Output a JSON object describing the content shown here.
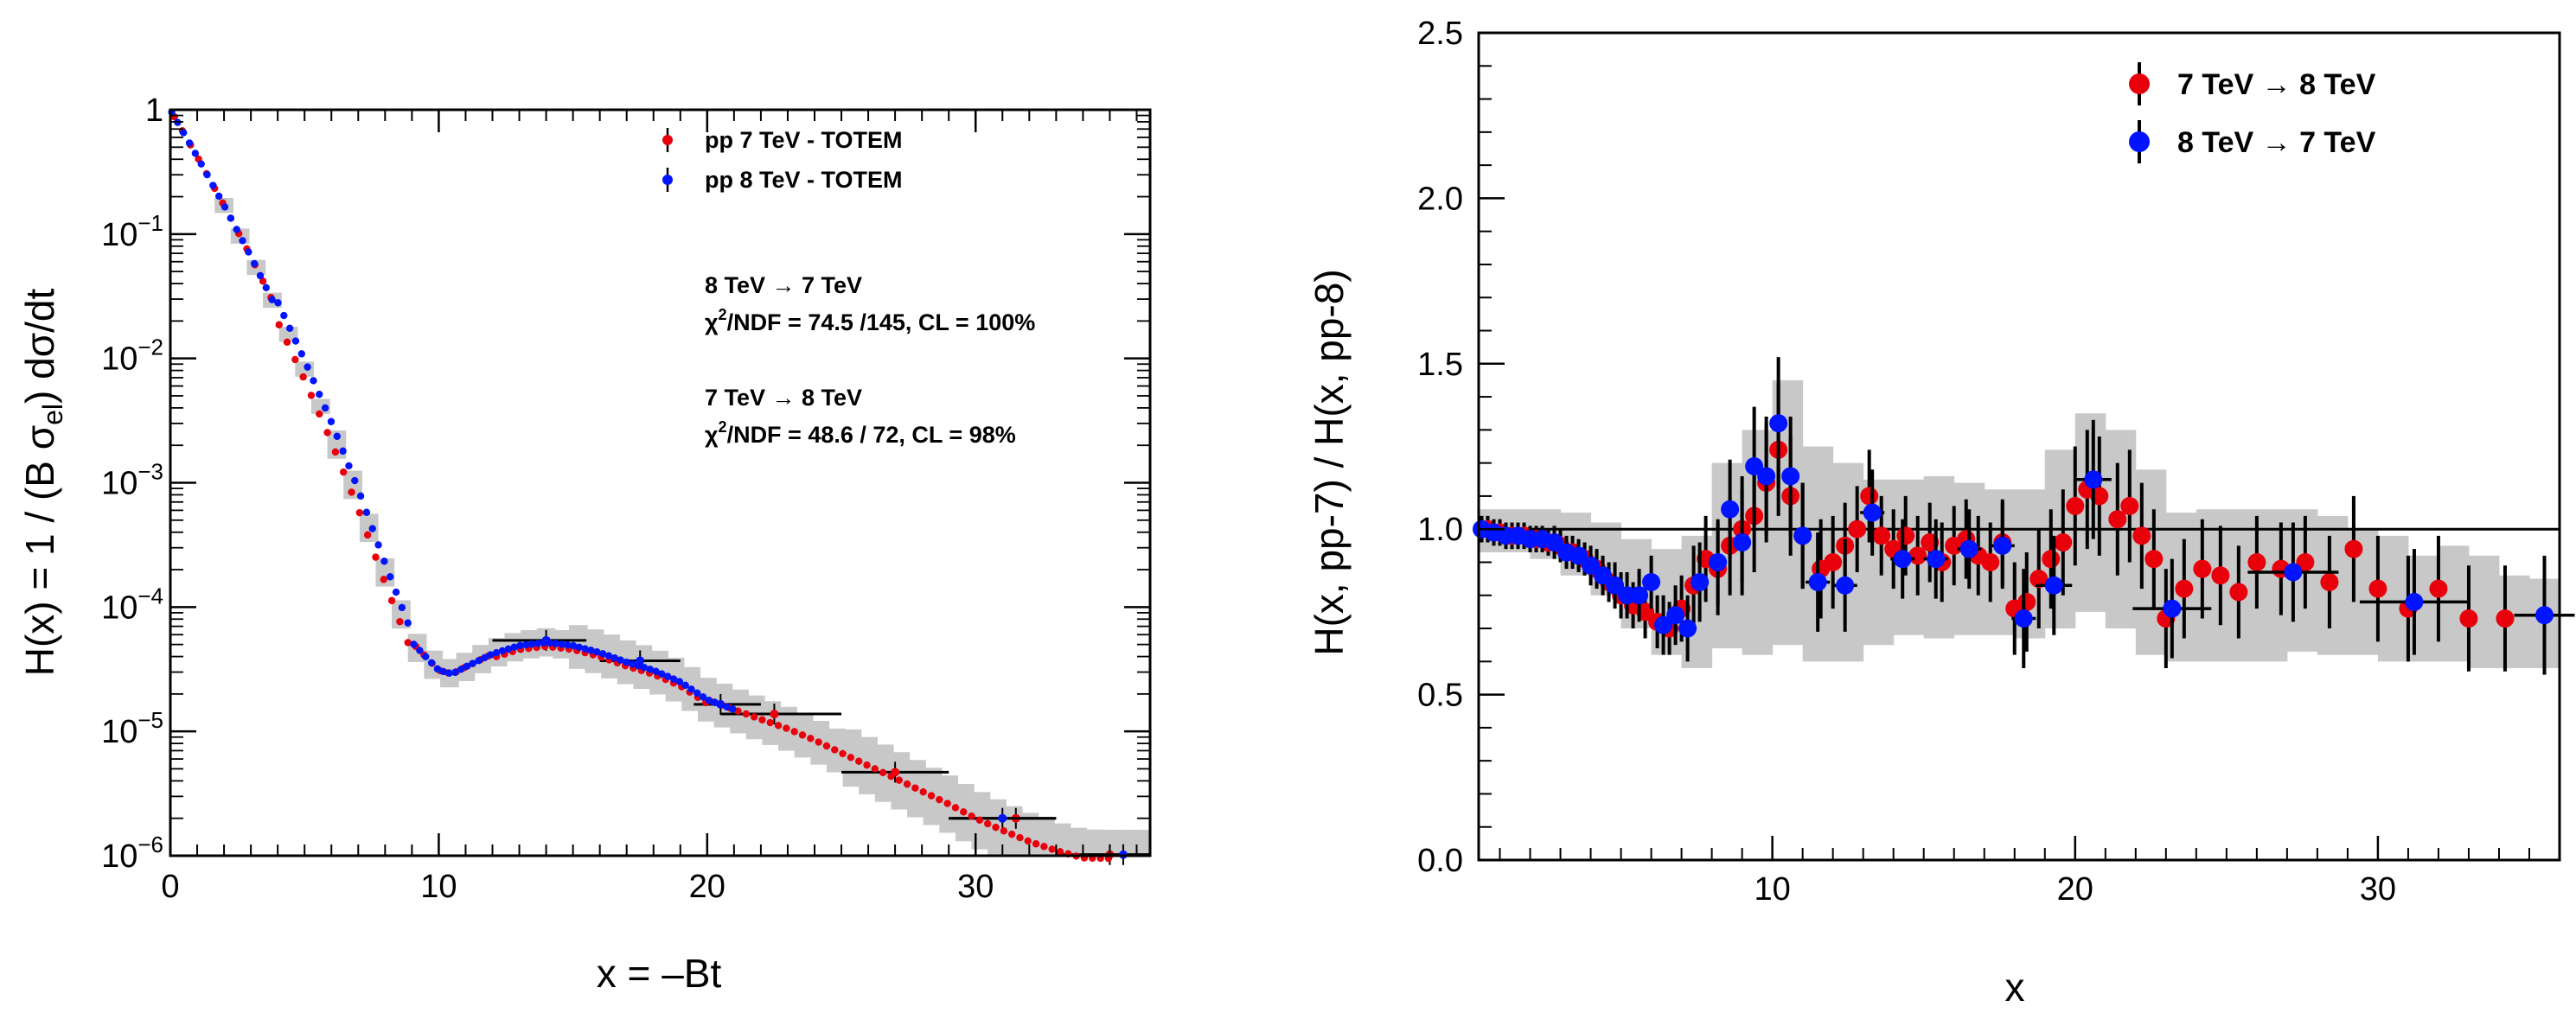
{
  "chart_data": [
    {
      "type": "scatter",
      "scale_y": "log",
      "xlim": [
        0,
        36.5
      ],
      "ylim": [
        1e-06,
        1
      ],
      "xlabel": "x = –Bt",
      "ylabel_parts": {
        "a": "H(x) = 1 / (B σ",
        "sub": "el",
        "b": ")  dσ/dt"
      },
      "x_ticks": [
        "0",
        "10",
        "20",
        "30"
      ],
      "x_tick_values": [
        0,
        10,
        20,
        30
      ],
      "y_ticks": [
        {
          "value": 1,
          "base": "1",
          "exp": ""
        },
        {
          "value": 0.1,
          "base": "10",
          "exp": "−1"
        },
        {
          "value": 0.01,
          "base": "10",
          "exp": "−2"
        },
        {
          "value": 0.001,
          "base": "10",
          "exp": "−3"
        },
        {
          "value": 0.0001,
          "base": "10",
          "exp": "−4"
        },
        {
          "value": 1e-05,
          "base": "10",
          "exp": "−5"
        },
        {
          "value": 1e-06,
          "base": "10",
          "exp": "−6"
        }
      ],
      "legend": [
        {
          "label": "pp 7 TeV - TOTEM",
          "color": "#e8000b"
        },
        {
          "label": "pp 8 TeV - TOTEM",
          "color": "#0014ff"
        }
      ],
      "annotations": {
        "block1_title": "8 TeV  → 7 TeV",
        "block1_chi_label": "χ",
        "block1_chi_sup": "2",
        "block1_chi_rest": "/NDF = 74.5 /145,  CL = 100%",
        "block2_title": "7 TeV  → 8 TeV",
        "block2_chi_label": "χ",
        "block2_chi_sup": "2",
        "block2_chi_rest": "/NDF = 48.6 / 72,  CL = 98%"
      },
      "curve_points": [
        [
          0,
          1
        ],
        [
          1,
          0.42
        ],
        [
          2,
          0.17
        ],
        [
          3,
          0.066
        ],
        [
          4,
          0.024
        ],
        [
          5,
          0.0082
        ],
        [
          6,
          0.0026
        ],
        [
          7,
          0.00075
        ],
        [
          8,
          0.00019
        ],
        [
          9,
          5.2e-05
        ],
        [
          10,
          3.1e-05
        ],
        [
          10.5,
          2.9e-05
        ],
        [
          11,
          3.3e-05
        ],
        [
          12,
          4.2e-05
        ],
        [
          13,
          4.9e-05
        ],
        [
          14,
          5.2e-05
        ],
        [
          15,
          4.9e-05
        ],
        [
          16,
          4.3e-05
        ],
        [
          17,
          3.6e-05
        ],
        [
          18,
          3.1e-05
        ],
        [
          19,
          2.5e-05
        ],
        [
          20,
          1.8e-05
        ],
        [
          21,
          1.5e-05
        ],
        [
          22,
          1.25e-05
        ],
        [
          23,
          1.05e-05
        ],
        [
          24,
          8.5e-06
        ],
        [
          25,
          6.7e-06
        ],
        [
          26,
          5.3e-06
        ],
        [
          27,
          4.2e-06
        ],
        [
          28,
          3.3e-06
        ],
        [
          29,
          2.6e-06
        ],
        [
          30,
          2e-06
        ],
        [
          31,
          1.6e-06
        ],
        [
          32,
          1.3e-06
        ],
        [
          33,
          1.1e-06
        ],
        [
          34,
          9.6e-07
        ],
        [
          35,
          9.5e-07
        ],
        [
          36,
          9.5e-07
        ]
      ],
      "binned_7TeV": [
        {
          "x": 22.5,
          "x_low": 20.5,
          "x_high": 25,
          "y": 1.38e-05
        },
        {
          "x": 27,
          "x_low": 25,
          "x_high": 29,
          "y": 4.7e-06
        },
        {
          "x": 31.5,
          "x_low": 29,
          "x_high": 33,
          "y": 2e-06
        },
        {
          "x": 35,
          "x_low": 33,
          "x_high": 36.5,
          "y": 1.02e-06
        }
      ],
      "binned_8TeV": [
        {
          "x": 14,
          "x_low": 12,
          "x_high": 15.5,
          "y": 5.4e-05
        },
        {
          "x": 17.5,
          "x_low": 16,
          "x_high": 19,
          "y": 3.7e-05
        },
        {
          "x": 20.5,
          "x_low": 19.5,
          "x_high": 22,
          "y": 1.65e-05
        },
        {
          "x": 31,
          "x_low": 29,
          "x_high": 33,
          "y": 2e-06
        },
        {
          "x": 35.5,
          "x_low": 34,
          "x_high": 36.5,
          "y": 1.02e-06
        }
      ]
    },
    {
      "type": "scatter",
      "xlim": [
        0.3,
        36
      ],
      "ylim": [
        0,
        2.5
      ],
      "xlabel": "x",
      "ylabel": "H(x, pp-7)  /  H(x, pp-8)",
      "x_ticks": [
        "10",
        "20",
        "30"
      ],
      "x_tick_values": [
        10,
        20,
        30
      ],
      "y_ticks": [
        "0.0",
        "0.5",
        "1.0",
        "1.5",
        "2.0",
        "2.5"
      ],
      "y_tick_values": [
        0,
        0.5,
        1.0,
        1.5,
        2.0,
        2.5
      ],
      "reference_line": 1.0,
      "legend": [
        {
          "label": "7 TeV  → 8 TeV",
          "color": "#e8000b"
        },
        {
          "label": "8 TeV  → 7 TeV",
          "color": "#0014ff"
        }
      ],
      "band": [
        [
          0.3,
          0.93,
          1.06
        ],
        [
          2,
          0.91,
          1.06
        ],
        [
          3,
          0.86,
          1.05
        ],
        [
          4,
          0.8,
          1.02
        ],
        [
          5,
          0.7,
          0.97
        ],
        [
          6,
          0.62,
          0.94
        ],
        [
          7,
          0.58,
          0.98
        ],
        [
          8,
          0.64,
          1.2
        ],
        [
          9,
          0.62,
          1.3
        ],
        [
          10,
          0.65,
          1.45
        ],
        [
          11,
          0.6,
          1.25
        ],
        [
          12,
          0.6,
          1.2
        ],
        [
          13,
          0.65,
          1.15
        ],
        [
          14,
          0.68,
          1.15
        ],
        [
          15,
          0.67,
          1.16
        ],
        [
          16,
          0.68,
          1.14
        ],
        [
          17,
          0.68,
          1.12
        ],
        [
          18,
          0.67,
          1.12
        ],
        [
          19,
          0.7,
          1.24
        ],
        [
          20,
          0.75,
          1.35
        ],
        [
          21,
          0.7,
          1.3
        ],
        [
          22,
          0.62,
          1.18
        ],
        [
          23,
          0.6,
          1.05
        ],
        [
          24,
          0.6,
          1.06
        ],
        [
          25,
          0.6,
          1.06
        ],
        [
          26,
          0.6,
          1.06
        ],
        [
          27,
          0.63,
          1.06
        ],
        [
          28,
          0.62,
          1.04
        ],
        [
          29,
          0.62,
          1.0
        ],
        [
          30,
          0.6,
          0.98
        ],
        [
          31,
          0.6,
          0.92
        ],
        [
          32,
          0.6,
          0.95
        ],
        [
          33,
          0.58,
          0.92
        ],
        [
          34,
          0.58,
          0.86
        ],
        [
          35,
          0.58,
          0.85
        ],
        [
          36,
          0.58,
          0.85
        ]
      ],
      "series_7to8": [
        [
          0.6,
          1.0,
          0.04
        ],
        [
          1.0,
          0.99,
          0.04
        ],
        [
          1.4,
          0.98,
          0.04
        ],
        [
          1.8,
          0.98,
          0.04
        ],
        [
          2.2,
          0.97,
          0.04
        ],
        [
          2.6,
          0.96,
          0.04
        ],
        [
          3.0,
          0.95,
          0.05
        ],
        [
          3.4,
          0.93,
          0.05
        ],
        [
          3.8,
          0.91,
          0.05
        ],
        [
          4.2,
          0.88,
          0.06
        ],
        [
          4.6,
          0.84,
          0.06
        ],
        [
          5.0,
          0.8,
          0.07
        ],
        [
          5.4,
          0.77,
          0.07
        ],
        [
          5.8,
          0.75,
          0.08
        ],
        [
          6.2,
          0.72,
          0.08
        ],
        [
          6.6,
          0.7,
          0.08
        ],
        [
          7.0,
          0.76,
          0.1
        ],
        [
          7.4,
          0.83,
          0.12
        ],
        [
          7.8,
          0.91,
          0.13
        ],
        [
          8.2,
          0.88,
          0.14
        ],
        [
          8.6,
          0.95,
          0.15
        ],
        [
          9.0,
          1.0,
          0.16
        ],
        [
          9.4,
          1.04,
          0.17
        ],
        [
          9.8,
          1.14,
          0.18
        ],
        [
          10.2,
          1.24,
          0.2
        ],
        [
          10.6,
          1.1,
          0.18
        ],
        [
          11.0,
          0.98,
          0.16
        ],
        [
          11.6,
          0.88,
          0.15
        ],
        [
          12.0,
          0.9,
          0.14
        ],
        [
          12.4,
          0.95,
          0.13
        ],
        [
          12.8,
          1.0,
          0.13
        ],
        [
          13.2,
          1.1,
          0.14
        ],
        [
          13.6,
          0.98,
          0.12
        ],
        [
          14.0,
          0.94,
          0.12
        ],
        [
          14.4,
          0.98,
          0.12
        ],
        [
          14.8,
          0.92,
          0.12
        ],
        [
          15.2,
          0.96,
          0.12
        ],
        [
          15.6,
          0.9,
          0.12
        ],
        [
          16.0,
          0.95,
          0.12
        ],
        [
          16.4,
          0.97,
          0.12
        ],
        [
          16.8,
          0.92,
          0.12
        ],
        [
          17.2,
          0.9,
          0.12
        ],
        [
          17.6,
          0.96,
          0.13
        ],
        [
          18.0,
          0.76,
          0.14
        ],
        [
          18.4,
          0.78,
          0.15
        ],
        [
          18.8,
          0.85,
          0.15
        ],
        [
          19.2,
          0.91,
          0.15
        ],
        [
          19.6,
          0.96,
          0.16
        ],
        [
          20.0,
          1.07,
          0.18
        ],
        [
          20.4,
          1.12,
          0.18
        ],
        [
          20.8,
          1.1,
          0.18
        ],
        [
          21.4,
          1.03,
          0.17
        ],
        [
          21.8,
          1.07,
          0.17
        ],
        [
          22.2,
          0.98,
          0.16
        ],
        [
          22.6,
          0.91,
          0.15
        ],
        [
          23.0,
          0.73,
          0.15
        ],
        [
          23.6,
          0.82,
          0.15
        ],
        [
          24.2,
          0.88,
          0.15
        ],
        [
          24.8,
          0.86,
          0.15
        ],
        [
          25.4,
          0.81,
          0.14
        ],
        [
          26.0,
          0.9,
          0.14
        ],
        [
          26.8,
          0.88,
          0.14
        ],
        [
          27.6,
          0.9,
          0.14
        ],
        [
          28.4,
          0.84,
          0.14
        ],
        [
          29.2,
          0.94,
          0.16
        ],
        [
          30.0,
          0.82,
          0.16
        ],
        [
          31.0,
          0.76,
          0.16
        ],
        [
          32.0,
          0.82,
          0.16
        ],
        [
          33.0,
          0.73,
          0.16
        ],
        [
          34.2,
          0.73,
          0.16
        ]
      ],
      "series_8to7": [
        [
          0.4,
          1.0,
          0.04,
          0
        ],
        [
          0.8,
          0.99,
          0.04,
          0
        ],
        [
          1.2,
          0.98,
          0.04,
          0
        ],
        [
          1.6,
          0.98,
          0.04,
          0
        ],
        [
          2.0,
          0.97,
          0.04,
          0
        ],
        [
          2.4,
          0.97,
          0.04,
          0
        ],
        [
          2.8,
          0.96,
          0.05,
          0
        ],
        [
          3.2,
          0.93,
          0.05,
          0
        ],
        [
          3.6,
          0.92,
          0.05,
          0
        ],
        [
          4.0,
          0.89,
          0.06,
          0
        ],
        [
          4.4,
          0.86,
          0.06,
          0
        ],
        [
          4.8,
          0.83,
          0.07,
          0
        ],
        [
          5.2,
          0.8,
          0.07,
          0
        ],
        [
          5.6,
          0.8,
          0.08,
          0
        ],
        [
          6.0,
          0.84,
          0.08,
          0
        ],
        [
          6.4,
          0.71,
          0.09,
          0
        ],
        [
          6.8,
          0.74,
          0.09,
          0
        ],
        [
          7.2,
          0.7,
          0.1,
          0
        ],
        [
          7.6,
          0.84,
          0.12,
          0
        ],
        [
          8.2,
          0.9,
          0.13,
          0
        ],
        [
          8.6,
          1.06,
          0.15,
          0
        ],
        [
          9.0,
          0.96,
          0.16,
          0
        ],
        [
          9.4,
          1.19,
          0.18,
          0
        ],
        [
          9.8,
          1.16,
          0.18,
          0
        ],
        [
          10.2,
          1.32,
          0.2,
          0
        ],
        [
          10.6,
          1.16,
          0.18,
          0
        ],
        [
          11.0,
          0.98,
          0.16,
          0
        ],
        [
          11.5,
          0.84,
          0.15,
          0.4
        ],
        [
          12.4,
          0.83,
          0.14,
          0.4
        ],
        [
          13.3,
          1.05,
          0.13,
          0.4
        ],
        [
          14.3,
          0.91,
          0.12,
          0.4
        ],
        [
          15.4,
          0.91,
          0.12,
          0.4
        ],
        [
          16.5,
          0.94,
          0.12,
          0.4
        ],
        [
          17.6,
          0.95,
          0.13,
          0.4
        ],
        [
          18.3,
          0.73,
          0.15,
          0.4
        ],
        [
          19.3,
          0.83,
          0.15,
          0.6
        ],
        [
          20.6,
          1.15,
          0.18,
          0.6
        ],
        [
          23.2,
          0.76,
          0.15,
          1.3
        ],
        [
          27.2,
          0.87,
          0.15,
          1.5
        ],
        [
          31.2,
          0.78,
          0.16,
          1.8
        ],
        [
          35.5,
          0.74,
          0.18,
          1.0
        ]
      ]
    }
  ]
}
